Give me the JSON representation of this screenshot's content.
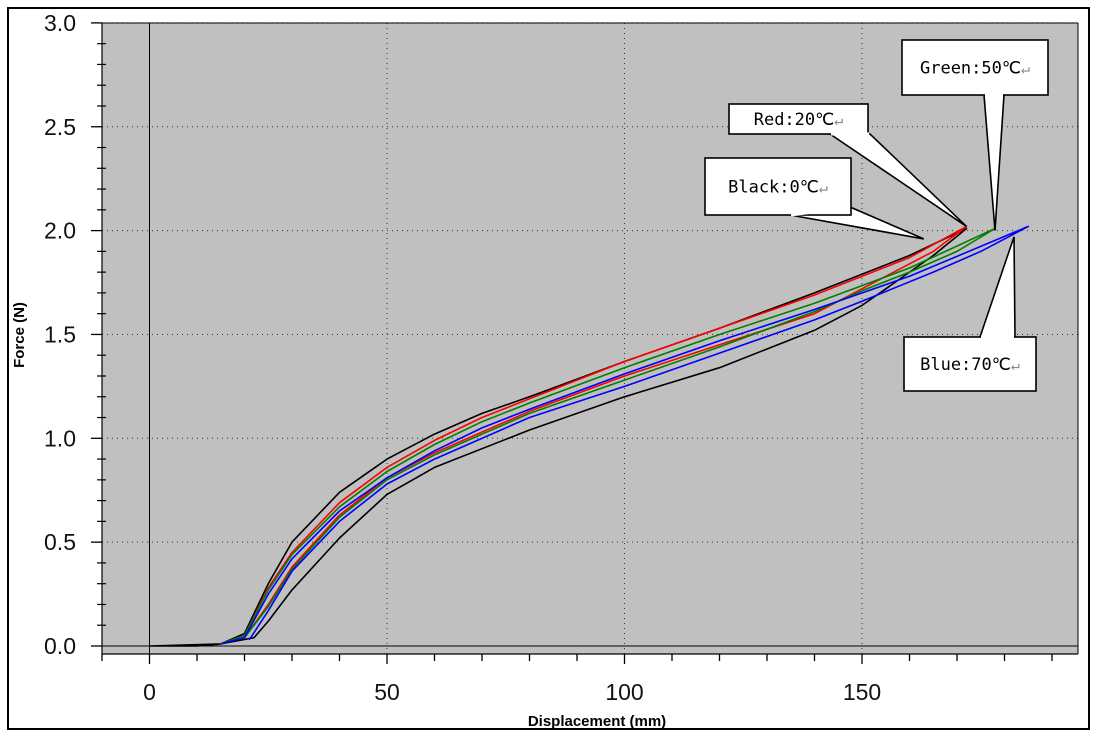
{
  "chart_data": {
    "type": "line",
    "title": "",
    "xlabel": "Displacement (mm)",
    "ylabel": "Force (N)",
    "xlim": [
      -10,
      195
    ],
    "ylim": [
      -0.05,
      3.0
    ],
    "xticks": [
      0,
      50,
      100,
      150
    ],
    "xtick_labels": [
      "0",
      "50",
      "100",
      "150"
    ],
    "yticks": [
      0.0,
      0.5,
      1.0,
      1.5,
      2.0,
      2.5,
      3.0
    ],
    "ytick_labels": [
      "0.0",
      "0.5",
      "1.0",
      "1.5",
      "2.0",
      "2.5",
      "3.0"
    ],
    "grid": "dotted at major ticks",
    "background": "#c0c0c0",
    "series": [
      {
        "color": "#000000",
        "x": [
          0,
          10,
          15,
          20,
          25,
          30,
          40,
          50,
          60,
          70,
          80,
          100,
          120,
          140,
          160,
          172,
          165,
          155,
          150,
          140,
          120,
          100,
          80,
          60,
          50,
          40,
          30,
          25,
          22,
          15,
          0
        ],
        "y": [
          0,
          0,
          0.01,
          0.06,
          0.3,
          0.5,
          0.74,
          0.9,
          1.02,
          1.12,
          1.2,
          1.37,
          1.53,
          1.7,
          1.88,
          2.01,
          1.88,
          1.72,
          1.64,
          1.52,
          1.34,
          1.2,
          1.04,
          0.86,
          0.73,
          0.52,
          0.27,
          0.12,
          0.04,
          0.01,
          0
        ]
      },
      {
        "color": "#ff0000",
        "x": [
          15,
          20,
          25,
          30,
          40,
          50,
          60,
          70,
          80,
          100,
          120,
          140,
          160,
          172,
          165,
          155,
          150,
          140,
          120,
          100,
          80,
          60,
          50,
          40,
          30,
          25,
          20
        ],
        "y": [
          0.01,
          0.05,
          0.28,
          0.45,
          0.69,
          0.86,
          0.99,
          1.1,
          1.19,
          1.37,
          1.53,
          1.69,
          1.87,
          2.02,
          1.9,
          1.78,
          1.72,
          1.6,
          1.45,
          1.3,
          1.13,
          0.93,
          0.81,
          0.63,
          0.38,
          0.2,
          0.04
        ]
      },
      {
        "color": "#008000",
        "x": [
          15,
          20,
          25,
          30,
          40,
          50,
          60,
          70,
          80,
          100,
          120,
          140,
          160,
          178,
          170,
          160,
          150,
          140,
          120,
          100,
          80,
          60,
          50,
          40,
          30,
          25,
          20
        ],
        "y": [
          0.01,
          0.05,
          0.27,
          0.44,
          0.67,
          0.84,
          0.97,
          1.08,
          1.17,
          1.34,
          1.5,
          1.65,
          1.82,
          2.01,
          1.9,
          1.8,
          1.71,
          1.61,
          1.44,
          1.28,
          1.12,
          0.92,
          0.8,
          0.62,
          0.37,
          0.19,
          0.04
        ]
      },
      {
        "color": "#0000ff",
        "x": [
          15,
          20,
          25,
          30,
          40,
          50,
          60,
          70,
          80,
          100,
          120,
          140,
          160,
          185,
          175,
          165,
          150,
          140,
          120,
          100,
          80,
          60,
          50,
          40,
          30,
          25,
          21
        ],
        "y": [
          0.01,
          0.04,
          0.25,
          0.42,
          0.65,
          0.81,
          0.94,
          1.05,
          1.14,
          1.31,
          1.47,
          1.62,
          1.78,
          2.02,
          1.9,
          1.8,
          1.66,
          1.57,
          1.41,
          1.25,
          1.1,
          0.9,
          0.78,
          0.6,
          0.36,
          0.17,
          0.03
        ]
      }
    ],
    "annotations": [
      {
        "text": "Black:0℃",
        "x": 163,
        "y": 1.96
      },
      {
        "text": "Red:20℃",
        "x": 172,
        "y": 2.02
      },
      {
        "text": "Green:50℃",
        "x": 178,
        "y": 2.0
      },
      {
        "text": "Blue:70℃",
        "x": 182,
        "y": 1.97
      }
    ],
    "return_mark": "↵"
  }
}
